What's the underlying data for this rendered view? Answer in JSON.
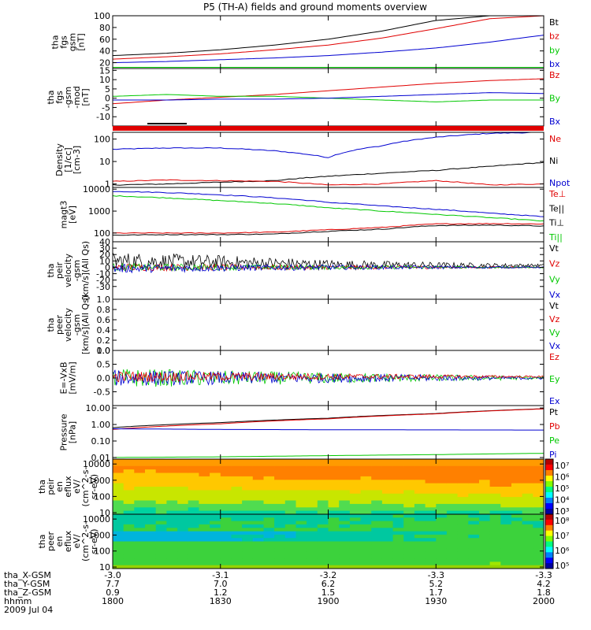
{
  "title": "P5 (TH-A) fields and ground moments overview",
  "colors": {
    "black": "#000000",
    "red": "#e00000",
    "green": "#00c800",
    "blue": "#0000d0"
  },
  "chart_data": [
    {
      "type": "line",
      "ylabel": [
        "tha",
        "fgs",
        "gsm",
        "[nT]"
      ],
      "ylim": [
        10,
        100
      ],
      "yticks": [
        "100",
        "80",
        "60",
        "40",
        "20"
      ],
      "ytick_values": [
        100,
        80,
        60,
        40,
        20
      ],
      "legend": [
        {
          "name": "Bt",
          "color": "black"
        },
        {
          "name": "bz",
          "color": "red"
        },
        {
          "name": "by",
          "color": "green"
        },
        {
          "name": "bx",
          "color": "blue"
        }
      ],
      "x": [
        1800,
        1815,
        1830,
        1845,
        1900,
        1915,
        1930,
        1945,
        2000
      ],
      "series": [
        {
          "color": "black",
          "values": [
            32,
            36,
            42,
            50,
            60,
            74,
            92,
            100,
            100
          ]
        },
        {
          "color": "red",
          "values": [
            26,
            30,
            35,
            42,
            50,
            62,
            78,
            95,
            100
          ]
        },
        {
          "color": "green",
          "values": [
            12,
            12,
            12,
            12,
            12,
            12,
            12,
            12,
            12
          ]
        },
        {
          "color": "blue",
          "values": [
            20,
            22,
            25,
            28,
            32,
            38,
            45,
            55,
            67
          ]
        }
      ]
    },
    {
      "type": "line",
      "ylabel": [
        "tha",
        "fgs",
        "-gsm",
        "-mod",
        "[nT]"
      ],
      "ylim": [
        -15,
        16
      ],
      "yticks": [
        "15",
        "10",
        "5",
        "0",
        "-5",
        "-10"
      ],
      "ytick_values": [
        15,
        10,
        5,
        0,
        -5,
        -10
      ],
      "legend": [
        {
          "name": "Bz",
          "color": "red"
        },
        {
          "name": "By",
          "color": "green"
        },
        {
          "name": "Bx",
          "color": "blue"
        }
      ],
      "x": [
        1800,
        1815,
        1830,
        1845,
        1900,
        1915,
        1930,
        1945,
        2000
      ],
      "series": [
        {
          "color": "red",
          "values": [
            -3,
            -1,
            0.5,
            2,
            4,
            6,
            8,
            9.5,
            10.5
          ]
        },
        {
          "color": "green",
          "values": [
            1,
            2,
            1,
            1,
            0,
            -1,
            -2,
            -1,
            -1
          ]
        },
        {
          "color": "blue",
          "values": [
            -1,
            -1,
            -0.5,
            -0.5,
            0,
            1,
            2,
            3,
            2.5
          ]
        }
      ]
    },
    {
      "type": "line",
      "ylabel": [
        "Density",
        "[1/cc]",
        "[cm-3]"
      ],
      "yscale": "log",
      "ylim": [
        0.7,
        200
      ],
      "yticks": [
        "100",
        "10",
        "1"
      ],
      "ytick_values": [
        100,
        10,
        1
      ],
      "legend": [
        {
          "name": "Ne",
          "color": "red"
        },
        {
          "name": "Ni",
          "color": "black"
        },
        {
          "name": "Npot",
          "color": "blue"
        }
      ],
      "x": [
        1800,
        1815,
        1830,
        1845,
        1900,
        1915,
        1930,
        1945,
        2000
      ],
      "series": [
        {
          "color": "blue",
          "values": [
            35,
            40,
            40,
            30,
            15,
            50,
            120,
            180,
            200
          ]
        },
        {
          "color": "black",
          "values": [
            0.9,
            1,
            1.2,
            1.4,
            2.2,
            3,
            4,
            6,
            9
          ]
        },
        {
          "color": "red",
          "values": [
            1.3,
            1.5,
            1.4,
            1.3,
            0.9,
            1.0,
            1.4,
            0.9,
            1
          ]
        }
      ]
    },
    {
      "type": "line",
      "ylabel": [
        "magt3",
        "[eV]"
      ],
      "yscale": "log",
      "ylim": [
        40,
        12000
      ],
      "yticks": [
        "10000",
        "1000",
        "100"
      ],
      "ytick_values": [
        10000,
        1000,
        100
      ],
      "legend": [
        {
          "name": "Te⊥",
          "color": "red"
        },
        {
          "name": "Te||",
          "color": "black"
        },
        {
          "name": "Ti⊥",
          "color": "black"
        },
        {
          "name": "Ti||",
          "color": "green"
        }
      ],
      "x": [
        1800,
        1815,
        1830,
        1845,
        1900,
        1915,
        1930,
        1945,
        2000
      ],
      "series": [
        {
          "color": "blue",
          "values": [
            8000,
            7000,
            5500,
            4000,
            2500,
            1700,
            1200,
            800,
            550
          ]
        },
        {
          "color": "green",
          "values": [
            5000,
            4000,
            3000,
            2200,
            1400,
            1000,
            700,
            500,
            350
          ]
        },
        {
          "color": "red",
          "values": [
            100,
            100,
            100,
            110,
            140,
            180,
            260,
            270,
            260
          ]
        },
        {
          "color": "black",
          "values": [
            80,
            85,
            85,
            90,
            120,
            150,
            220,
            230,
            210
          ]
        }
      ]
    },
    {
      "type": "line",
      "ylabel": [
        "tha",
        "peir",
        "velocity",
        "-gsm",
        "[km/s](All Qs)"
      ],
      "ylim": [
        -50,
        40
      ],
      "yticks": [
        "40",
        "30",
        "20",
        "10",
        "0",
        "-10",
        "-20",
        "-30"
      ],
      "ytick_values": [
        40,
        30,
        20,
        10,
        0,
        -10,
        -20,
        -30
      ],
      "legend": [
        {
          "name": "Vt",
          "color": "black"
        },
        {
          "name": "Vz",
          "color": "red"
        },
        {
          "name": "Vy",
          "color": "green"
        },
        {
          "name": "Vx",
          "color": "blue"
        }
      ],
      "x": [
        1800,
        1830,
        1900,
        1930,
        2000
      ],
      "series": [
        {
          "color": "black",
          "noise": 14,
          "decay": true,
          "values": [
            10,
            8,
            4,
            3,
            3
          ]
        },
        {
          "color": "red",
          "noise": 6,
          "decay": true,
          "values": [
            0,
            0,
            0,
            0,
            0
          ]
        },
        {
          "color": "green",
          "noise": 6,
          "decay": true,
          "values": [
            0,
            0,
            0,
            0,
            0
          ]
        },
        {
          "color": "blue",
          "noise": 7,
          "decay": true,
          "values": [
            -2,
            -1,
            0,
            0,
            0
          ]
        }
      ]
    },
    {
      "type": "line",
      "ylabel": [
        "tha",
        "peer",
        "velocity",
        "-gsm",
        "[km/s](All Qs)"
      ],
      "ylim": [
        0,
        1
      ],
      "yticks": [
        "1.0",
        "0.8",
        "0.6",
        "0.4",
        "0.2",
        "0.0"
      ],
      "ytick_values": [
        1,
        0.8,
        0.6,
        0.4,
        0.2,
        0
      ],
      "legend": [
        {
          "name": "Vt",
          "color": "black"
        },
        {
          "name": "Vz",
          "color": "red"
        },
        {
          "name": "Vy",
          "color": "green"
        },
        {
          "name": "Vx",
          "color": "blue"
        }
      ],
      "x": [],
      "series": []
    },
    {
      "type": "line",
      "ylabel": [
        "E=-VxB",
        "[mV/m]"
      ],
      "ylim": [
        -1,
        1
      ],
      "yticks": [
        "1.0",
        "0.5",
        "0.0",
        "-0.5"
      ],
      "ytick_values": [
        1,
        0.5,
        0,
        -0.5
      ],
      "legend": [
        {
          "name": "Ez",
          "color": "red"
        },
        {
          "name": "Ey",
          "color": "green"
        },
        {
          "name": "Ex",
          "color": "blue"
        }
      ],
      "x": [
        1800,
        1830,
        1900,
        1930,
        2000
      ],
      "series": [
        {
          "color": "green",
          "noise": 0.35,
          "decay": true,
          "values": [
            0,
            0,
            0,
            0,
            0
          ]
        },
        {
          "color": "blue",
          "noise": 0.3,
          "decay": true,
          "values": [
            0,
            0,
            0,
            0,
            0
          ]
        },
        {
          "color": "red",
          "noise": 0.2,
          "decay": true,
          "values": [
            0.05,
            0.05,
            0.05,
            0.05,
            0.05
          ]
        }
      ]
    },
    {
      "type": "line",
      "ylabel": [
        "Pressure",
        "[nPa]"
      ],
      "yscale": "log",
      "ylim": [
        0.008,
        14
      ],
      "yticks": [
        "10.00",
        "1.00",
        "0.10",
        "0.01"
      ],
      "ytick_values": [
        10,
        1,
        0.1,
        0.01
      ],
      "legend": [
        {
          "name": "Pt",
          "color": "black"
        },
        {
          "name": "Pb",
          "color": "red"
        },
        {
          "name": "Pe",
          "color": "green"
        },
        {
          "name": "Pi",
          "color": "blue"
        }
      ],
      "x": [
        1800,
        1830,
        1900,
        1930,
        2000
      ],
      "series": [
        {
          "color": "black",
          "values": [
            0.65,
            1.3,
            2.4,
            4.6,
            9
          ]
        },
        {
          "color": "red",
          "values": [
            0.5,
            1.1,
            2.2,
            4.4,
            8.8
          ]
        },
        {
          "color": "blue",
          "values": [
            0.55,
            0.5,
            0.48,
            0.47,
            0.46
          ]
        },
        {
          "color": "green",
          "values": [
            0.01,
            0.011,
            0.013,
            0.015,
            0.018
          ]
        }
      ]
    },
    {
      "type": "heatmap",
      "ylabel": [
        "tha",
        "peir",
        "en",
        "eflux",
        "eV/",
        "(cm^2-s-",
        "sr-eV)"
      ],
      "yscale": "log",
      "ylim": [
        8,
        20000
      ],
      "yticks": [
        "10000",
        "1000",
        "100",
        "10"
      ],
      "ytick_values": [
        10000,
        1000,
        100,
        10
      ],
      "colorbar": {
        "ticks": [
          "10^7",
          "10^6",
          "10^5",
          "10^4",
          "10^3"
        ]
      }
    },
    {
      "type": "heatmap",
      "ylabel": [
        "tha",
        "peer",
        "en",
        "eflux",
        "eV/",
        "(cm^2-s-",
        "sr-eV)"
      ],
      "yscale": "log",
      "ylim": [
        8,
        20000
      ],
      "yticks": [
        "10000",
        "1000",
        "100",
        "10"
      ],
      "ytick_values": [
        10000,
        1000,
        100,
        10
      ],
      "colorbar": {
        "ticks": [
          "10^8",
          "10^7",
          "10^6",
          "10^5"
        ]
      }
    }
  ],
  "x_axis": {
    "tick_times": [
      1800,
      1830,
      1900,
      1930,
      2000
    ],
    "rows": [
      {
        "label": "tha_X-GSM",
        "values": [
          "-3.0",
          "-3.1",
          "-3.2",
          "-3.3",
          "-3.3"
        ]
      },
      {
        "label": "tha_Y-GSM",
        "values": [
          "7.7",
          "7.0",
          "6.2",
          "5.2",
          "4.2"
        ]
      },
      {
        "label": "tha_Z-GSM",
        "values": [
          "0.9",
          "1.2",
          "1.5",
          "1.7",
          "1.8"
        ]
      },
      {
        "label": "hhmm",
        "values": [
          "1800",
          "1830",
          "1900",
          "1930",
          "2000"
        ]
      }
    ],
    "date": "2009 Jul 04"
  }
}
